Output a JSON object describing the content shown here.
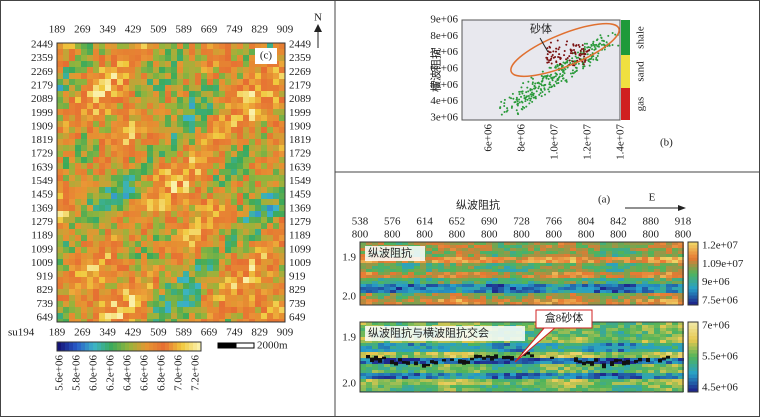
{
  "map": {
    "label": "(c)",
    "north": "N",
    "x_labels": [
      "189",
      "269",
      "349",
      "429",
      "509",
      "589",
      "669",
      "749",
      "829",
      "909"
    ],
    "y_labels": [
      "2449",
      "2359",
      "2269",
      "2179",
      "2089",
      "1999",
      "1909",
      "1819",
      "1729",
      "1639",
      "1549",
      "1459",
      "1369",
      "1279",
      "1189",
      "1099",
      "1009",
      "919",
      "829",
      "739",
      "649"
    ],
    "corner_label": "su194",
    "colorbar_ticks": [
      "5.6e+06",
      "5.8e+06",
      "6.0e+06",
      "6.2e+06",
      "6.4e+06",
      "6.6e+06",
      "6.8e+06",
      "7.0e+06",
      "7.2e+06"
    ],
    "scale_label": "2000m"
  },
  "crossplot": {
    "label": "(b)",
    "y_label": "横波阻抗",
    "y_ticks": [
      "9e+06",
      "8e+06",
      "7e+06",
      "6e+06",
      "5e+06",
      "4e+06",
      "3e+06"
    ],
    "x_ticks": [
      "6e+06",
      "8e+06",
      "1.0e+07",
      "1.2e+07",
      "1.4e+07"
    ],
    "annotation": "砂体",
    "legend": [
      "shale",
      "sand",
      "gas"
    ]
  },
  "section": {
    "label": "(a)",
    "title": "纵波阻抗",
    "direction": "E",
    "trace_labels": [
      "538",
      "576",
      "614",
      "652",
      "690",
      "728",
      "766",
      "804",
      "842",
      "880",
      "918"
    ],
    "line_labels": [
      "800",
      "800",
      "800",
      "800",
      "800",
      "800",
      "800",
      "800",
      "800",
      "800",
      "800"
    ],
    "panels": [
      {
        "label": "纵波阻抗",
        "depth_ticks": [
          "1.9",
          "2.0"
        ],
        "colorbar_ticks": [
          "1.2e+07",
          "1.09e+07",
          "9e+06",
          "7.5e+06"
        ]
      },
      {
        "label": "纵波阻抗与横波阻抗交会",
        "depth_ticks": [
          "1.9",
          "2.0"
        ],
        "colorbar_ticks": [
          "7e+06",
          "5.5e+06",
          "4.5e+06"
        ]
      }
    ],
    "callout": "盒8砂体"
  }
}
